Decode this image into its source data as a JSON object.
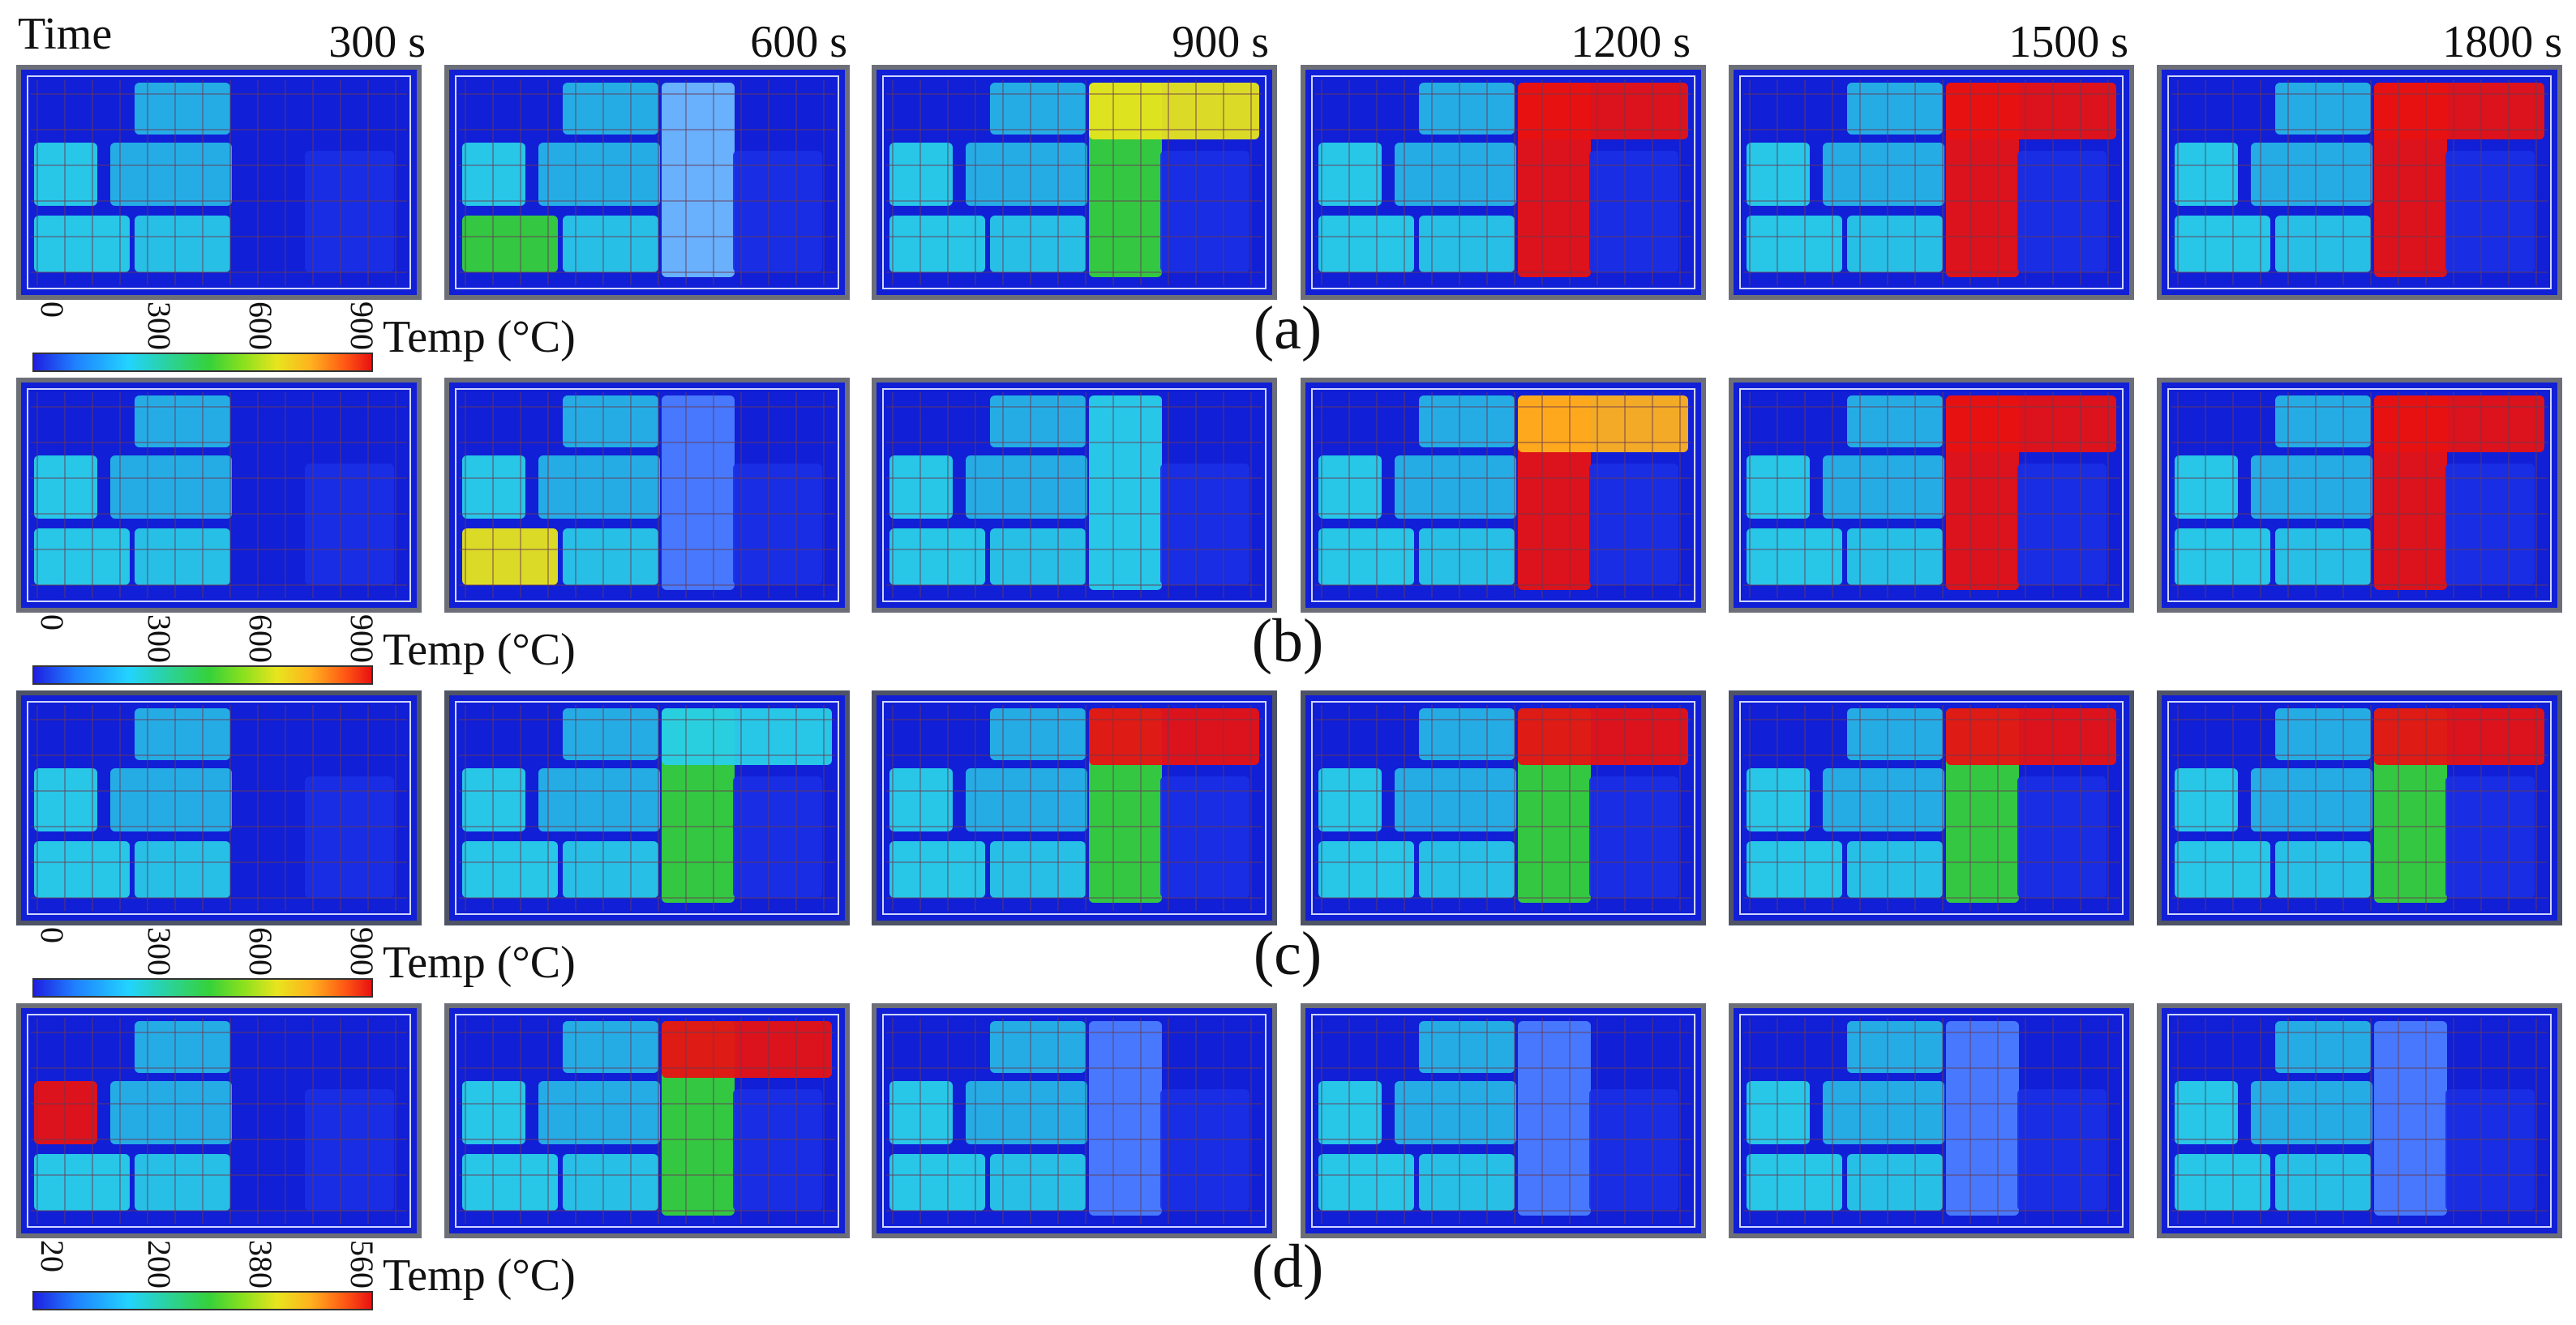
{
  "header": {
    "time_label": "Time"
  },
  "time_steps": [
    "300 s",
    "600 s",
    "900 s",
    "1200 s",
    "1500 s",
    "1800 s"
  ],
  "rows": [
    {
      "label": "(a)",
      "colorbar": {
        "title": "Temp (°C)",
        "ticks": [
          "0",
          "300",
          "600",
          "900"
        ]
      }
    },
    {
      "label": "(b)",
      "colorbar": {
        "title": "Temp (°C)",
        "ticks": [
          "0",
          "300",
          "600",
          "900"
        ]
      }
    },
    {
      "label": "(c)",
      "colorbar": {
        "title": "Temp (°C)",
        "ticks": [
          "0",
          "300",
          "600",
          "900"
        ]
      }
    },
    {
      "label": "(d)",
      "colorbar": {
        "title": "Temp (°C)",
        "ticks": [
          "20",
          "200",
          "380",
          "560"
        ]
      }
    }
  ],
  "colors": {
    "background": "#111fd6",
    "cool": "#2ad0e8",
    "warm": "#36d13a",
    "hot": "#e81212"
  }
}
